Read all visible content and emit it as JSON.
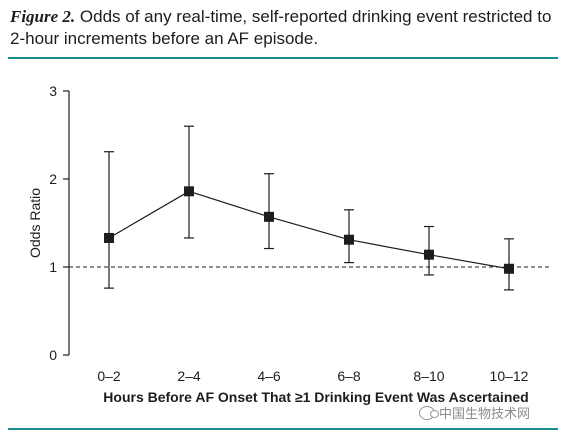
{
  "caption": {
    "label": "Figure 2.",
    "text": "Odds of any real-time, self-reported drinking event restricted to 2-hour increments before an AF episode."
  },
  "watermark": {
    "text": "中国生物技术网",
    "icon": "wechat-icon"
  },
  "colors": {
    "rule": "#1b8c8f",
    "series": "#1d1d1d",
    "reference_line": "#1d1d1d"
  },
  "chart_data": {
    "type": "line",
    "title": "",
    "xlabel": "Hours Before AF Onset That ≥1 Drinking Event Was Ascertained",
    "ylabel": "Odds Ratio",
    "categories": [
      "0–2",
      "2–4",
      "4–6",
      "6–8",
      "8–10",
      "10–12"
    ],
    "series": [
      {
        "values": [
          1.33,
          1.86,
          1.57,
          1.31,
          1.14,
          0.98
        ],
        "lower": [
          0.76,
          1.33,
          1.21,
          1.05,
          0.91,
          0.74
        ],
        "upper": [
          2.31,
          2.6,
          2.06,
          1.65,
          1.46,
          1.32
        ]
      }
    ],
    "ylim": [
      0,
      3
    ],
    "yticks": [
      0,
      1,
      2,
      3
    ],
    "reference_line": 1,
    "grid": false,
    "marker": "square",
    "error_bars": true
  }
}
